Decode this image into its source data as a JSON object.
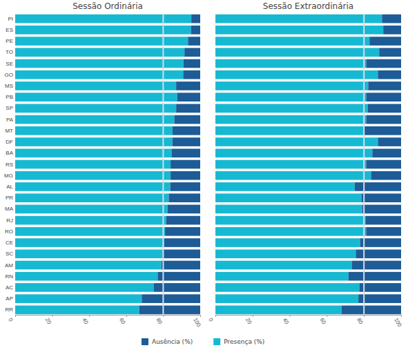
{
  "chart_data": {
    "type": "bar",
    "orientation": "horizontal",
    "stacked": true,
    "legend": "bottom",
    "categories": [
      "PI",
      "ES",
      "PE",
      "TO",
      "SE",
      "GO",
      "MS",
      "PB",
      "SP",
      "PA",
      "MT",
      "DF",
      "BA",
      "RS",
      "MG",
      "AL",
      "PR",
      "MA",
      "RJ",
      "RO",
      "CE",
      "SC",
      "AM",
      "RN",
      "AC",
      "AP",
      "RR"
    ],
    "xlim": [
      0,
      100
    ],
    "xticks": [
      0,
      20,
      40,
      60,
      80,
      100
    ],
    "reference_line": 80,
    "series": [
      {
        "name": "Presença (%)",
        "color": "#17b9d2"
      },
      {
        "name": "Ausência (%)",
        "color": "#1d5c96"
      }
    ],
    "panels": [
      {
        "title": "Sessão Ordinária",
        "series": [
          {
            "values": [
              95.2,
              95,
              93.4,
              91.5,
              91,
              90.8,
              87,
              87.5,
              87,
              86,
              85,
              85,
              84.5,
              84,
              84,
              83.8,
              83,
              82.4,
              81.6,
              81,
              80.5,
              79.8,
              79,
              77,
              75,
              68.4,
              67
            ]
          },
          {
            "values": [
              4.8,
              5,
              6.6,
              8.5,
              9,
              9.2,
              13,
              12.5,
              13,
              14,
              15,
              15,
              15.5,
              16,
              16,
              16.2,
              17,
              17.6,
              18.4,
              19,
              19.5,
              20.2,
              21,
              23,
              25,
              31.6,
              33
            ]
          }
        ]
      },
      {
        "title": "Sessão Extraordinária",
        "series": [
          {
            "values": [
              89.7,
              90.4,
              83,
              88.2,
              81.2,
              87.5,
              82.3,
              81.2,
              82,
              81.2,
              80,
              87.5,
              84.5,
              81.2,
              83.8,
              75,
              78.6,
              79,
              80.8,
              81.2,
              77.9,
              75.6,
              73.4,
              71.6,
              77.5,
              77,
              68
            ]
          },
          {
            "values": [
              10.3,
              9.6,
              17,
              11.8,
              18.8,
              12.5,
              17.7,
              18.8,
              18,
              18.8,
              20,
              12.5,
              15.5,
              18.8,
              16.2,
              25,
              21.4,
              21,
              19.2,
              18.8,
              22.1,
              24.4,
              26.6,
              28.4,
              22.5,
              23,
              32
            ]
          }
        ]
      }
    ]
  }
}
